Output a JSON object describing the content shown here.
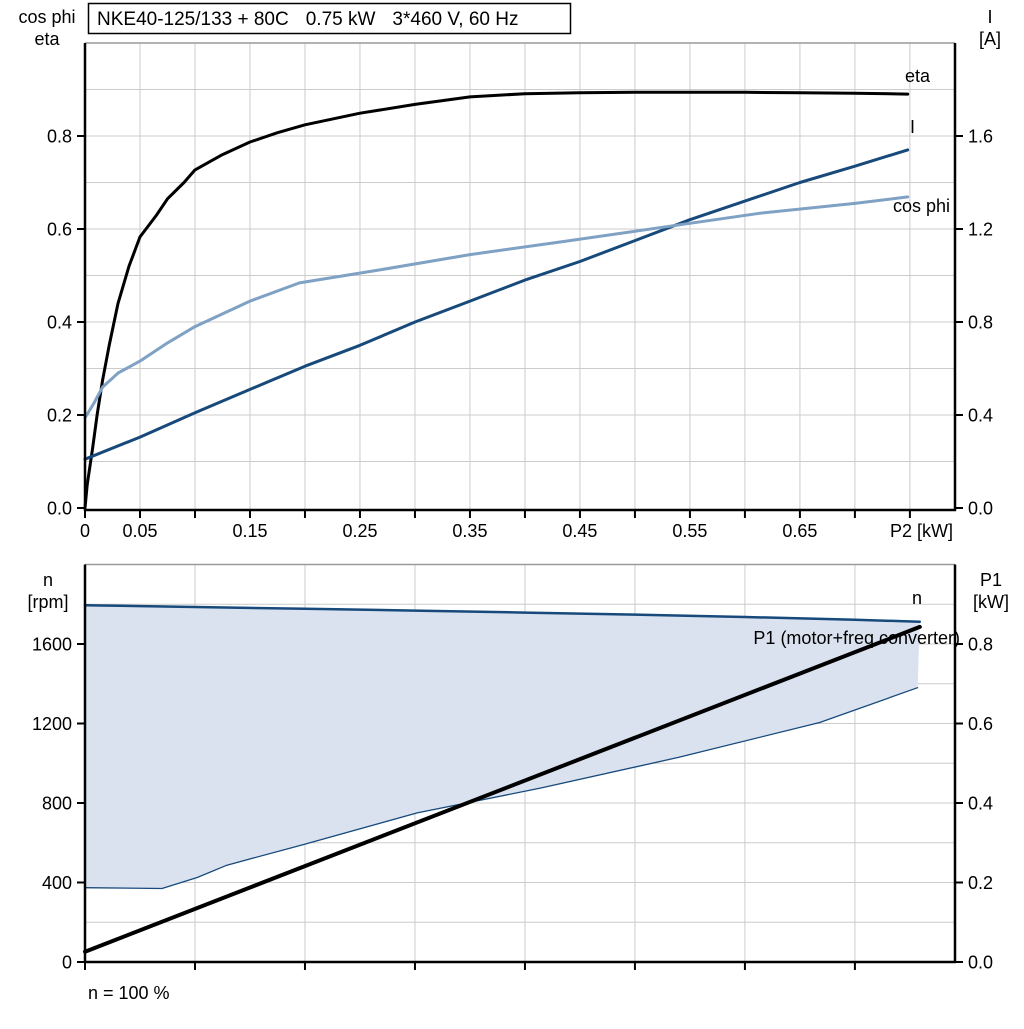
{
  "colors": {
    "navy": "#17497b",
    "light_blue": "#7fa1c4",
    "area_fill": "#d9e2ee",
    "grid": "#cccccc",
    "axis": "#000000",
    "frame_gray": "#9a9a9a"
  },
  "chart_data": [
    {
      "type": "line",
      "title_parts": [
        "NKE40-125/133 + 80C",
        "0.75 kW",
        "3*460 V, 60 Hz"
      ],
      "x_axis": {
        "label": "P2 [kW]",
        "range": [
          0,
          0.791
        ],
        "grid_step": 0.05,
        "tick_step": 0.05,
        "tick_labels": [
          {
            "v": 0,
            "label": "0"
          },
          {
            "v": 0.05,
            "label": "0.05"
          },
          {
            "v": 0.15,
            "label": "0.15"
          },
          {
            "v": 0.25,
            "label": "0.25"
          },
          {
            "v": 0.35,
            "label": "0.35"
          },
          {
            "v": 0.45,
            "label": "0.45"
          },
          {
            "v": 0.55,
            "label": "0.55"
          },
          {
            "v": 0.65,
            "label": "0.65"
          }
        ]
      },
      "y_left": {
        "label_lines": [
          "cos phi",
          "eta"
        ],
        "range": [
          0,
          1.0
        ],
        "grid_step": 0.1,
        "ticks": [
          {
            "v": 0,
            "label": "0.0"
          },
          {
            "v": 0.2,
            "label": "0.2"
          },
          {
            "v": 0.4,
            "label": "0.4"
          },
          {
            "v": 0.6,
            "label": "0.6"
          },
          {
            "v": 0.8,
            "label": "0.8"
          }
        ]
      },
      "y_right": {
        "label_lines": [
          "I",
          "[A]"
        ],
        "range": [
          0,
          2.0
        ],
        "ticks": [
          {
            "v": 0,
            "label": "0.0"
          },
          {
            "v": 0.4,
            "label": "0.4"
          },
          {
            "v": 0.8,
            "label": "0.8"
          },
          {
            "v": 1.2,
            "label": "1.2"
          },
          {
            "v": 1.6,
            "label": "1.6"
          }
        ]
      },
      "series": [
        {
          "name": "eta",
          "label": "eta",
          "axis": "left",
          "color": "#000000",
          "width": 3,
          "x": [
            0,
            0.002,
            0.007,
            0.011,
            0.016,
            0.022,
            0.03,
            0.04,
            0.05,
            0.065,
            0.075,
            0.09,
            0.1,
            0.125,
            0.15,
            0.175,
            0.2,
            0.25,
            0.3,
            0.35,
            0.4,
            0.45,
            0.5,
            0.55,
            0.6,
            0.65,
            0.7,
            0.748
          ],
          "y": [
            0,
            0.05,
            0.13,
            0.2,
            0.275,
            0.35,
            0.44,
            0.52,
            0.583,
            0.63,
            0.665,
            0.7,
            0.727,
            0.76,
            0.787,
            0.807,
            0.824,
            0.849,
            0.868,
            0.884,
            0.891,
            0.893,
            0.894,
            0.894,
            0.894,
            0.893,
            0.892,
            0.89
          ]
        },
        {
          "name": "I",
          "label": "I",
          "axis": "right",
          "color": "navy",
          "width": 3,
          "x": [
            0,
            0.05,
            0.1,
            0.15,
            0.2,
            0.25,
            0.3,
            0.35,
            0.4,
            0.45,
            0.5,
            0.55,
            0.6,
            0.65,
            0.7,
            0.748
          ],
          "y": [
            0.21,
            0.305,
            0.41,
            0.51,
            0.61,
            0.7,
            0.8,
            0.89,
            0.98,
            1.06,
            1.15,
            1.24,
            1.32,
            1.4,
            1.47,
            1.54
          ]
        },
        {
          "name": "cos_phi",
          "label": "cos phi",
          "axis": "left",
          "color": "light_blue",
          "width": 3,
          "x": [
            0,
            0.008,
            0.016,
            0.03,
            0.05,
            0.075,
            0.1,
            0.15,
            0.195,
            0.268,
            0.35,
            0.432,
            0.535,
            0.614,
            0.7,
            0.748
          ],
          "y": [
            0.194,
            0.225,
            0.26,
            0.29,
            0.316,
            0.355,
            0.39,
            0.445,
            0.484,
            0.512,
            0.545,
            0.572,
            0.607,
            0.634,
            0.655,
            0.669
          ]
        }
      ]
    },
    {
      "type": "area+line",
      "x_axis": {
        "label": "",
        "range": [
          0,
          0.791
        ],
        "grid_step": 0.1,
        "tick_step": 0.1,
        "tick_labels": []
      },
      "y_left": {
        "label_lines": [
          "n",
          "[rpm]"
        ],
        "range": [
          0,
          2000
        ],
        "ticks": [
          {
            "v": 0,
            "label": "0"
          },
          {
            "v": 400,
            "label": "400"
          },
          {
            "v": 800,
            "label": "800"
          },
          {
            "v": 1200,
            "label": "1200"
          },
          {
            "v": 1600,
            "label": "1600"
          }
        ]
      },
      "y_right": {
        "label_lines": [
          "P1",
          "[kW]"
        ],
        "range": [
          0,
          1.0
        ],
        "grid_step": 0.1,
        "ticks": [
          {
            "v": 0,
            "label": "0.0"
          },
          {
            "v": 0.2,
            "label": "0.2"
          },
          {
            "v": 0.4,
            "label": "0.4"
          },
          {
            "v": 0.6,
            "label": "0.6"
          },
          {
            "v": 0.8,
            "label": "0.8"
          }
        ]
      },
      "series": [
        {
          "name": "n_max",
          "label": "n",
          "axis": "left",
          "color": "navy",
          "width": 2.5,
          "x": [
            0,
            0.1,
            0.2,
            0.3,
            0.4,
            0.5,
            0.6,
            0.7,
            0.759
          ],
          "y": [
            1795,
            1786,
            1777,
            1768,
            1758,
            1748,
            1736,
            1722,
            1712
          ]
        },
        {
          "name": "n_min",
          "label": "",
          "axis": "left",
          "color": "navy",
          "width": 1.3,
          "x": [
            0,
            0.07,
            0.102,
            0.129,
            0.198,
            0.302,
            0.414,
            0.54,
            0.668,
            0.757
          ],
          "y": [
            374,
            370,
            425,
            487,
            590,
            750,
            875,
            1030,
            1205,
            1380
          ]
        },
        {
          "name": "P1",
          "label": "P1 (motor+freq converter)",
          "axis": "right",
          "color": "#000000",
          "width": 4,
          "x": [
            0,
            0.759
          ],
          "y": [
            0.026,
            0.843
          ]
        }
      ],
      "area": {
        "fill": "area_fill",
        "upper": "n_max",
        "lower": "n_min"
      },
      "annotation": "n = 100 %"
    }
  ]
}
